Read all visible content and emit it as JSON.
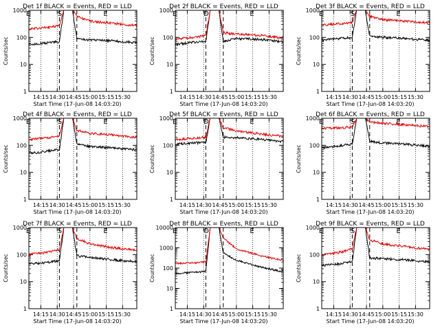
{
  "chart_data": [
    {
      "type": "line",
      "title": "Det 1f BLACK = Events, RED = LLD",
      "xlabel": "Start Time (17-Jun-08 14:03:20)",
      "ylabel": "Counts/sec",
      "x_tick_labels": [
        "14:15",
        "14:30",
        "14:45",
        "15:00",
        "15:15",
        "15:30"
      ],
      "y_tick_labels": [
        "1",
        "10",
        "100",
        "1000"
      ],
      "ylim": [
        1,
        1000
      ],
      "y_scale": "log",
      "markers": [
        {
          "label": "E",
          "time": "14:04"
        },
        {
          "label": "S",
          "time": "14:33"
        },
        {
          "label": "E",
          "time": "15:15"
        }
      ],
      "series": [
        {
          "name": "BLACK = Events",
          "color": "#000000",
          "x": [
            "14:04",
            "14:20",
            "14:32",
            "14:36",
            "14:44",
            "14:48",
            "15:00",
            "15:20",
            "15:40"
          ],
          "values": [
            55,
            62,
            70,
            1000,
            1000,
            85,
            80,
            75,
            65
          ]
        },
        {
          "name": "RED = LLD",
          "color": "#e00000",
          "x": [
            "14:04",
            "14:20",
            "14:32",
            "14:36",
            "14:44",
            "14:48",
            "15:00",
            "15:20",
            "15:40"
          ],
          "values": [
            200,
            230,
            270,
            1000,
            1000,
            600,
            400,
            330,
            280
          ]
        }
      ]
    },
    {
      "type": "line",
      "title": "Det 2f BLACK = Events, RED = LLD",
      "xlabel": "Start Time (17-Jun-08 14:03:20)",
      "ylabel": "Counts/sec",
      "x_tick_labels": [
        "14:15",
        "14:30",
        "14:45",
        "15:00",
        "15:15",
        "15:30"
      ],
      "y_tick_labels": [
        "1",
        "10",
        "100",
        "1000"
      ],
      "ylim": [
        1,
        1000
      ],
      "y_scale": "log",
      "markers": [
        {
          "label": "E",
          "time": "14:04"
        },
        {
          "label": "D",
          "time": "14:33"
        },
        {
          "label": "E",
          "time": "15:15"
        }
      ],
      "series": [
        {
          "name": "BLACK = Events",
          "color": "#000000",
          "x": [
            "14:04",
            "14:20",
            "14:32",
            "14:36",
            "14:44",
            "14:48",
            "15:00",
            "15:20",
            "15:40"
          ],
          "values": [
            55,
            65,
            70,
            1000,
            1000,
            70,
            90,
            85,
            70
          ]
        },
        {
          "name": "RED = LLD",
          "color": "#e00000",
          "x": [
            "14:04",
            "14:20",
            "14:32",
            "14:36",
            "14:44",
            "14:48",
            "15:00",
            "15:20",
            "15:40"
          ],
          "values": [
            85,
            100,
            115,
            1000,
            1000,
            150,
            130,
            120,
            100
          ]
        }
      ]
    },
    {
      "type": "line",
      "title": "Det 3f BLACK = Events, RED = LLD",
      "xlabel": "Start Time (17-Jun-08 14:03:20)",
      "ylabel": "Counts/sec",
      "x_tick_labels": [
        "14:15",
        "14:30",
        "14:45",
        "15:00",
        "15:15",
        "15:30"
      ],
      "y_tick_labels": [
        "1",
        "10",
        "100",
        "1000"
      ],
      "ylim": [
        1,
        1000
      ],
      "y_scale": "log",
      "markers": [
        {
          "label": "E",
          "time": "14:04"
        },
        {
          "label": "S",
          "time": "14:33"
        },
        {
          "label": "E",
          "time": "15:15"
        }
      ],
      "series": [
        {
          "name": "BLACK = Events",
          "color": "#000000",
          "x": [
            "14:04",
            "14:20",
            "14:32",
            "14:36",
            "14:44",
            "14:48",
            "15:00",
            "15:20",
            "15:40"
          ],
          "values": [
            80,
            90,
            100,
            1000,
            1000,
            110,
            100,
            90,
            80
          ]
        },
        {
          "name": "RED = LLD",
          "color": "#e00000",
          "x": [
            "14:04",
            "14:20",
            "14:32",
            "14:36",
            "14:44",
            "14:48",
            "15:00",
            "15:20",
            "15:40"
          ],
          "values": [
            280,
            320,
            350,
            1000,
            1000,
            600,
            450,
            400,
            350
          ]
        }
      ]
    },
    {
      "type": "line",
      "title": "Det 4f BLACK = Events, RED = LLD",
      "xlabel": "Start Time (17-Jun-08 14:03:20)",
      "ylabel": "Counts/sec",
      "x_tick_labels": [
        "14:15",
        "14:30",
        "14:45",
        "15:00",
        "15:15",
        "15:30"
      ],
      "y_tick_labels": [
        "1",
        "10",
        "100",
        "1000"
      ],
      "ylim": [
        1,
        1000
      ],
      "y_scale": "log",
      "markers": [
        {
          "label": "E",
          "time": "14:04"
        },
        {
          "label": "S",
          "time": "14:33"
        },
        {
          "label": "E",
          "time": "15:15"
        }
      ],
      "series": [
        {
          "name": "BLACK = Events",
          "color": "#000000",
          "x": [
            "14:04",
            "14:20",
            "14:32",
            "14:36",
            "14:44",
            "14:48",
            "15:00",
            "15:20",
            "15:40"
          ],
          "values": [
            50,
            60,
            70,
            1000,
            1000,
            110,
            90,
            80,
            70
          ]
        },
        {
          "name": "RED = LLD",
          "color": "#e00000",
          "x": [
            "14:04",
            "14:20",
            "14:32",
            "14:36",
            "14:44",
            "14:48",
            "15:00",
            "15:20",
            "15:40"
          ],
          "values": [
            160,
            190,
            220,
            1000,
            1000,
            350,
            280,
            240,
            200
          ]
        }
      ]
    },
    {
      "type": "line",
      "title": "Det 5f BLACK = Events, RED = LLD",
      "xlabel": "Start Time (17-Jun-08 14:03:20)",
      "ylabel": "Counts/sec",
      "x_tick_labels": [
        "14:15",
        "14:30",
        "14:45",
        "15:00",
        "15:15",
        "15:30"
      ],
      "y_tick_labels": [
        "1",
        "10",
        "100",
        "1000"
      ],
      "ylim": [
        1,
        1000
      ],
      "y_scale": "log",
      "markers": [
        {
          "label": "E",
          "time": "14:04"
        },
        {
          "label": "D",
          "time": "14:33"
        },
        {
          "label": "E",
          "time": "15:15"
        }
      ],
      "series": [
        {
          "name": "BLACK = Events",
          "color": "#000000",
          "x": [
            "14:04",
            "14:20",
            "14:32",
            "14:36",
            "14:44",
            "14:48",
            "15:00",
            "15:20",
            "15:40"
          ],
          "values": [
            110,
            120,
            130,
            1000,
            1000,
            200,
            190,
            170,
            140
          ]
        },
        {
          "name": "RED = LLD",
          "color": "#e00000",
          "x": [
            "14:04",
            "14:20",
            "14:32",
            "14:36",
            "14:44",
            "14:48",
            "15:00",
            "15:20",
            "15:40"
          ],
          "values": [
            160,
            180,
            200,
            1000,
            1000,
            450,
            330,
            270,
            220
          ]
        }
      ]
    },
    {
      "type": "line",
      "title": "Det 6f BLACK = Events, RED = LLD",
      "xlabel": "Start Time (17-Jun-08 14:03:20)",
      "ylabel": "Counts/sec",
      "x_tick_labels": [
        "14:15",
        "14:30",
        "14:45",
        "15:00",
        "15:15",
        "15:30"
      ],
      "y_tick_labels": [
        "1",
        "10",
        "100",
        "1000"
      ],
      "ylim": [
        1,
        1000
      ],
      "y_scale": "log",
      "markers": [
        {
          "label": "E",
          "time": "14:04"
        },
        {
          "label": "S",
          "time": "14:33"
        },
        {
          "label": "E",
          "time": "15:15"
        }
      ],
      "series": [
        {
          "name": "BLACK = Events",
          "color": "#000000",
          "x": [
            "14:04",
            "14:20",
            "14:32",
            "14:36",
            "14:44",
            "14:48",
            "15:00",
            "15:20",
            "15:40"
          ],
          "values": [
            80,
            95,
            110,
            1000,
            1000,
            140,
            120,
            110,
            95
          ]
        },
        {
          "name": "RED = LLD",
          "color": "#e00000",
          "x": [
            "14:04",
            "14:20",
            "14:32",
            "14:36",
            "14:44",
            "14:48",
            "15:00",
            "15:20",
            "15:40"
          ],
          "values": [
            420,
            440,
            470,
            1000,
            1000,
            750,
            650,
            580,
            500
          ]
        }
      ]
    },
    {
      "type": "line",
      "title": "Det 7f BLACK = Events, RED = LLD",
      "xlabel": "Start Time (17-Jun-08 14:03:20)",
      "ylabel": "Counts/sec",
      "x_tick_labels": [
        "14:15",
        "14:30",
        "14:45",
        "15:00",
        "15:15",
        "15:30"
      ],
      "y_tick_labels": [
        "1",
        "10",
        "100",
        "1000"
      ],
      "ylim": [
        1,
        1000
      ],
      "y_scale": "log",
      "markers": [
        {
          "label": "E",
          "time": "14:04"
        },
        {
          "label": "S",
          "time": "14:33"
        },
        {
          "label": "E",
          "time": "15:15"
        }
      ],
      "series": [
        {
          "name": "BLACK = Events",
          "color": "#000000",
          "x": [
            "14:04",
            "14:20",
            "14:32",
            "14:36",
            "14:44",
            "14:48",
            "15:00",
            "15:20",
            "15:40"
          ],
          "values": [
            45,
            50,
            60,
            1000,
            1000,
            90,
            80,
            65,
            55
          ]
        },
        {
          "name": "RED = LLD",
          "color": "#e00000",
          "x": [
            "14:04",
            "14:20",
            "14:32",
            "14:36",
            "14:44",
            "14:48",
            "15:00",
            "15:20",
            "15:40"
          ],
          "values": [
            100,
            120,
            150,
            1000,
            1000,
            400,
            250,
            180,
            150
          ]
        }
      ]
    },
    {
      "type": "line",
      "title": "Det 8f BLACK = Events, RED = LLD",
      "xlabel": "Start Time (17-Jun-08 14:03:20)",
      "ylabel": "Counts/sec",
      "x_tick_labels": [
        "14:15",
        "14:30",
        "14:45",
        "15:00",
        "15:15",
        "15:30"
      ],
      "y_tick_labels": [
        "1",
        "10",
        "100",
        "1000",
        "10000"
      ],
      "ylim": [
        1,
        10000
      ],
      "y_scale": "log",
      "markers": [
        {
          "label": "E",
          "time": "14:04"
        },
        {
          "label": "O",
          "time": "14:33"
        },
        {
          "label": "E",
          "time": "15:15"
        }
      ],
      "series": [
        {
          "name": "BLACK = Events",
          "color": "#000000",
          "x": [
            "14:04",
            "14:20",
            "14:32",
            "14:36",
            "14:44",
            "14:48",
            "15:00",
            "15:20",
            "15:40"
          ],
          "values": [
            55,
            60,
            70,
            10000,
            10000,
            550,
            250,
            120,
            70
          ]
        },
        {
          "name": "RED = LLD",
          "color": "#e00000",
          "x": [
            "14:04",
            "14:20",
            "14:32",
            "14:36",
            "14:44",
            "14:48",
            "15:00",
            "15:20",
            "15:40"
          ],
          "values": [
            170,
            180,
            200,
            10000,
            10000,
            3000,
            900,
            450,
            250
          ]
        }
      ]
    },
    {
      "type": "line",
      "title": "Det 9f BLACK = Events, RED = LLD",
      "xlabel": "Start Time (17-Jun-08 14:03:20)",
      "ylabel": "Counts/sec",
      "x_tick_labels": [
        "14:15",
        "14:30",
        "14:45",
        "15:00",
        "15:15",
        "15:30"
      ],
      "y_tick_labels": [
        "1",
        "10",
        "100",
        "1000"
      ],
      "ylim": [
        1,
        1000
      ],
      "y_scale": "log",
      "markers": [
        {
          "label": "E",
          "time": "14:04"
        },
        {
          "label": "S",
          "time": "14:33"
        },
        {
          "label": "E",
          "time": "15:15"
        }
      ],
      "series": [
        {
          "name": "BLACK = Events",
          "color": "#000000",
          "x": [
            "14:04",
            "14:20",
            "14:32",
            "14:36",
            "14:44",
            "14:48",
            "15:00",
            "15:20",
            "15:40"
          ],
          "values": [
            40,
            45,
            55,
            1000,
            1000,
            75,
            70,
            65,
            55
          ]
        },
        {
          "name": "RED = LLD",
          "color": "#e00000",
          "x": [
            "14:04",
            "14:20",
            "14:32",
            "14:36",
            "14:44",
            "14:48",
            "15:00",
            "15:20",
            "15:40"
          ],
          "values": [
            100,
            120,
            160,
            1000,
            1000,
            350,
            250,
            200,
            160
          ]
        }
      ]
    }
  ]
}
